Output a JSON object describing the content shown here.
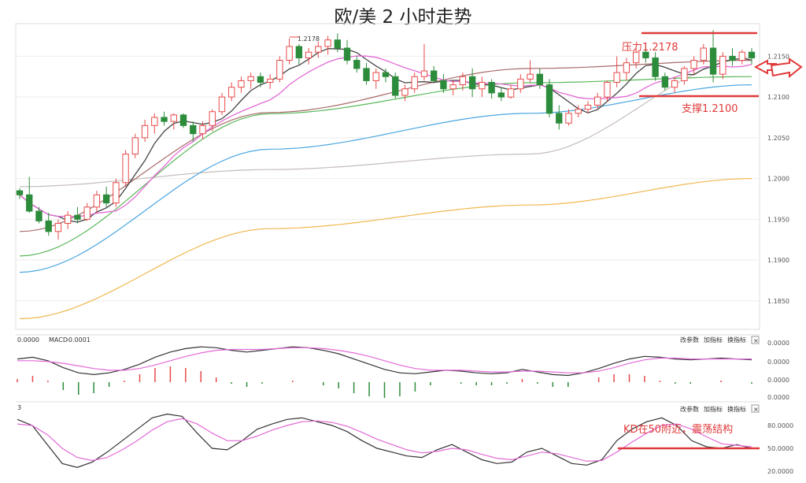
{
  "chart_data": {
    "type": "candlestick",
    "title": "欧/美 2 小时走势",
    "colors": {
      "up": "#e84a4a",
      "down": "#2d8c3c",
      "ma5": "#444444",
      "ma10": "#e36ad6",
      "ma20": "#c6bcbc",
      "ma30": "#a86a6a",
      "ma60": "#5ab85a",
      "ma120": "#4aa6e0",
      "ma250": "#f0b850",
      "annotation": "#e03a3a"
    },
    "price_axis": {
      "ticks": [
        "1.2150",
        "1.2100",
        "1.2050",
        "1.2000",
        "1.1950",
        "1.1900",
        "1.1850"
      ],
      "ylim": [
        1.1815,
        1.219
      ]
    },
    "candles": [
      [
        1.1985,
        1.1988,
        1.1975,
        1.198
      ],
      [
        1.198,
        1.2002,
        1.1958,
        1.196
      ],
      [
        1.196,
        1.1965,
        1.1945,
        1.1948
      ],
      [
        1.1948,
        1.1958,
        1.193,
        1.1935
      ],
      [
        1.1935,
        1.195,
        1.1925,
        1.1945
      ],
      [
        1.1945,
        1.196,
        1.1938,
        1.1955
      ],
      [
        1.1955,
        1.1965,
        1.1945,
        1.195
      ],
      [
        1.195,
        1.197,
        1.1948,
        1.1965
      ],
      [
        1.1965,
        1.1985,
        1.1958,
        1.198
      ],
      [
        1.198,
        1.199,
        1.1965,
        1.197
      ],
      [
        1.197,
        1.2,
        1.1965,
        1.1995
      ],
      [
        1.1995,
        1.2035,
        1.199,
        1.203
      ],
      [
        1.203,
        1.2055,
        1.2025,
        1.205
      ],
      [
        1.205,
        1.2072,
        1.2045,
        1.2065
      ],
      [
        1.2065,
        1.208,
        1.2055,
        1.2075
      ],
      [
        1.2075,
        1.2082,
        1.2065,
        1.207
      ],
      [
        1.207,
        1.208,
        1.206,
        1.2078
      ],
      [
        1.2078,
        1.208,
        1.2062,
        1.2065
      ],
      [
        1.2065,
        1.207,
        1.2045,
        1.2055
      ],
      [
        1.2055,
        1.207,
        1.2048,
        1.2065
      ],
      [
        1.2065,
        1.2085,
        1.2058,
        1.2082
      ],
      [
        1.2082,
        1.2105,
        1.2078,
        1.21
      ],
      [
        1.21,
        1.2118,
        1.2095,
        1.2112
      ],
      [
        1.2112,
        1.2125,
        1.2105,
        1.212
      ],
      [
        1.212,
        1.213,
        1.211,
        1.2125
      ],
      [
        1.2125,
        1.213,
        1.2112,
        1.2118
      ],
      [
        1.2118,
        1.2128,
        1.211,
        1.2122
      ],
      [
        1.2122,
        1.215,
        1.2118,
        1.2145
      ],
      [
        1.2145,
        1.2172,
        1.214,
        1.2162
      ],
      [
        1.2162,
        1.2165,
        1.214,
        1.2148
      ],
      [
        1.2148,
        1.216,
        1.214,
        1.2155
      ],
      [
        1.2155,
        1.2168,
        1.2148,
        1.2162
      ],
      [
        1.2162,
        1.2175,
        1.2152,
        1.217
      ],
      [
        1.217,
        1.2178,
        1.2155,
        1.216
      ],
      [
        1.216,
        1.217,
        1.214,
        1.2145
      ],
      [
        1.2145,
        1.215,
        1.213,
        1.2135
      ],
      [
        1.2135,
        1.2142,
        1.2115,
        1.212
      ],
      [
        1.212,
        1.2135,
        1.211,
        1.213
      ],
      [
        1.213,
        1.2135,
        1.2118,
        1.2125
      ],
      [
        1.2125,
        1.213,
        1.2098,
        1.2102
      ],
      [
        1.2102,
        1.2115,
        1.2095,
        1.211
      ],
      [
        1.211,
        1.213,
        1.2105,
        1.2125
      ],
      [
        1.2125,
        1.2165,
        1.212,
        1.2132
      ],
      [
        1.2132,
        1.2138,
        1.2118,
        1.212
      ],
      [
        1.212,
        1.2128,
        1.2105,
        1.211
      ],
      [
        1.211,
        1.212,
        1.2102,
        1.2115
      ],
      [
        1.2115,
        1.213,
        1.2108,
        1.2125
      ],
      [
        1.2125,
        1.2135,
        1.21,
        1.211
      ],
      [
        1.211,
        1.2125,
        1.21,
        1.2118
      ],
      [
        1.2118,
        1.2122,
        1.2098,
        1.2105
      ],
      [
        1.2105,
        1.2112,
        1.2095,
        1.21
      ],
      [
        1.21,
        1.2115,
        1.2098,
        1.211
      ],
      [
        1.211,
        1.2128,
        1.2105,
        1.2122
      ],
      [
        1.2122,
        1.2145,
        1.2118,
        1.2128
      ],
      [
        1.2128,
        1.2135,
        1.211,
        1.2115
      ],
      [
        1.2115,
        1.2122,
        1.2075,
        1.208
      ],
      [
        1.208,
        1.209,
        1.206,
        1.2068
      ],
      [
        1.2068,
        1.2085,
        1.2065,
        1.208
      ],
      [
        1.208,
        1.209,
        1.2075,
        1.2085
      ],
      [
        1.2085,
        1.2095,
        1.208,
        1.209
      ],
      [
        1.209,
        1.2105,
        1.2085,
        1.21
      ],
      [
        1.21,
        1.212,
        1.2095,
        1.2118
      ],
      [
        1.2118,
        1.215,
        1.2112,
        1.213
      ],
      [
        1.213,
        1.2148,
        1.212,
        1.2142
      ],
      [
        1.2142,
        1.216,
        1.2135,
        1.2155
      ],
      [
        1.2155,
        1.2165,
        1.2142,
        1.2148
      ],
      [
        1.2148,
        1.2155,
        1.212,
        1.2125
      ],
      [
        1.2125,
        1.213,
        1.2108,
        1.2112
      ],
      [
        1.2112,
        1.2125,
        1.2105,
        1.212
      ],
      [
        1.212,
        1.2138,
        1.2115,
        1.2135
      ],
      [
        1.2135,
        1.215,
        1.2128,
        1.2145
      ],
      [
        1.2145,
        1.2165,
        1.214,
        1.216
      ],
      [
        1.216,
        1.2182,
        1.2118,
        1.2128
      ],
      [
        1.2128,
        1.2155,
        1.2122,
        1.215
      ],
      [
        1.215,
        1.216,
        1.2138,
        1.2145
      ],
      [
        1.2145,
        1.2158,
        1.214,
        1.2155
      ],
      [
        1.2155,
        1.216,
        1.214,
        1.2148
      ]
    ],
    "moving_averages": [
      {
        "id": "ma20",
        "start": [
          1.199,
          1.1965,
          1.1985
        ],
        "end": [
          1.2075,
          1.211,
          1.2148
        ]
      },
      {
        "id": "ma30",
        "start": [
          1.1935,
          1.203,
          1.214
        ],
        "end": [
          1.213,
          1.2135,
          1.2145
        ]
      },
      {
        "id": "ma60",
        "start": [
          1.1905,
          1.204,
          1.2115
        ],
        "end": [
          1.212,
          1.2122,
          1.2125
        ]
      },
      {
        "id": "ma120",
        "start": [
          1.1885,
          1.198,
          1.206
        ],
        "end": [
          1.21,
          1.211,
          1.2115
        ]
      },
      {
        "id": "ma250",
        "start": [
          1.1828,
          1.1905,
          1.196
        ],
        "end": [
          1.1975,
          1.199,
          1.2
        ]
      }
    ],
    "annotations": {
      "resistance": {
        "label": "压力1.2178",
        "value": 1.2178
      },
      "support": {
        "label": "支撑1.2100",
        "value": 1.21
      },
      "peak_label": "1.2178",
      "kd_note": "KD在50附近，震荡结构",
      "kd_level": 50
    },
    "macd_panel": {
      "header_value_left": "0.0000",
      "header_label": "MACD",
      "header_value": "-0.0001",
      "buttons": [
        "改参数",
        "加指标",
        "换指标"
      ],
      "close": "×",
      "ticks": [
        "0.0000",
        "0.0000",
        "0.0000",
        "0.0000"
      ],
      "dif": [
        0.2,
        0.3,
        0.1,
        -0.3,
        -0.6,
        -0.7,
        -0.6,
        -0.4,
        -0.1,
        0.3,
        0.6,
        0.8,
        0.9,
        0.85,
        0.7,
        0.6,
        0.7,
        0.8,
        0.9,
        0.85,
        0.7,
        0.5,
        0.2,
        -0.1,
        -0.4,
        -0.6,
        -0.65,
        -0.55,
        -0.45,
        -0.5,
        -0.6,
        -0.65,
        -0.6,
        -0.4,
        -0.55,
        -0.7,
        -0.75,
        -0.6,
        -0.35,
        -0.05,
        0.2,
        0.35,
        0.3,
        0.2,
        0.15,
        0.2,
        0.25,
        0.2,
        0.15
      ],
      "dea": [
        0.1,
        0.1,
        0.05,
        -0.05,
        -0.2,
        -0.35,
        -0.45,
        -0.45,
        -0.35,
        -0.15,
        0.1,
        0.35,
        0.55,
        0.7,
        0.75,
        0.75,
        0.75,
        0.8,
        0.85,
        0.85,
        0.8,
        0.7,
        0.55,
        0.35,
        0.1,
        -0.15,
        -0.35,
        -0.45,
        -0.45,
        -0.45,
        -0.5,
        -0.55,
        -0.55,
        -0.5,
        -0.5,
        -0.55,
        -0.6,
        -0.6,
        -0.5,
        -0.3,
        -0.05,
        0.15,
        0.25,
        0.25,
        0.2,
        0.2,
        0.2,
        0.2,
        0.2
      ]
    },
    "kd_panel": {
      "header": "3",
      "buttons": [
        "改参数",
        "加指标",
        "换指标"
      ],
      "close": "×",
      "ticks": [
        "80.0000",
        "50.0000",
        "20.0000"
      ],
      "k": [
        88,
        80,
        55,
        30,
        25,
        32,
        45,
        60,
        75,
        90,
        95,
        92,
        70,
        50,
        48,
        60,
        75,
        82,
        88,
        90,
        85,
        80,
        72,
        60,
        50,
        45,
        40,
        38,
        48,
        55,
        45,
        35,
        30,
        32,
        45,
        50,
        40,
        30,
        28,
        35,
        60,
        75,
        85,
        90,
        80,
        60,
        52,
        50,
        55,
        50
      ],
      "d": [
        82,
        80,
        68,
        50,
        38,
        34,
        38,
        48,
        60,
        74,
        85,
        89,
        82,
        70,
        60,
        60,
        66,
        74,
        80,
        85,
        86,
        84,
        79,
        71,
        62,
        55,
        48,
        44,
        46,
        50,
        48,
        42,
        37,
        35,
        40,
        45,
        43,
        38,
        33,
        34,
        45,
        58,
        70,
        80,
        82,
        75,
        65,
        56,
        54,
        52
      ]
    }
  }
}
